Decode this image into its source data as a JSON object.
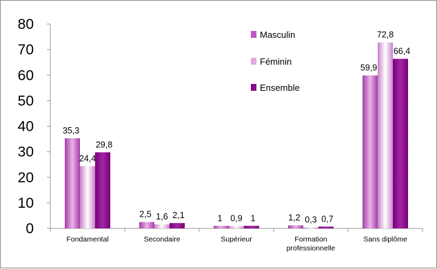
{
  "chart_data": {
    "type": "bar",
    "categories": [
      "Fondamental",
      "Secondaire",
      "Supérieur",
      [
        "Formation",
        "professionnelle"
      ],
      "Sans diplôme"
    ],
    "series": [
      {
        "name": "Masculin",
        "values": [
          35.3,
          2.5,
          1,
          1.2,
          59.9
        ],
        "labels": [
          "35,3",
          "2,5",
          "1",
          "1,2",
          "59,9"
        ],
        "color": "#c058c0"
      },
      {
        "name": "Féminin",
        "values": [
          24.4,
          1.6,
          0.9,
          0.3,
          72.8
        ],
        "labels": [
          "24,4",
          "1,6",
          "0,9",
          "0,3",
          "72,8"
        ],
        "color": "#e2a8e2"
      },
      {
        "name": "Ensemble",
        "values": [
          29.8,
          2.1,
          1,
          0.7,
          66.4
        ],
        "labels": [
          "29,8",
          "2,1",
          "1",
          "0,7",
          "66,4"
        ],
        "color": "#8c0a8c"
      }
    ],
    "yticks": [
      "0",
      "10",
      "20",
      "30",
      "40",
      "50",
      "60",
      "70",
      "80"
    ],
    "ylim": [
      0,
      80
    ],
    "grid": false,
    "legend": "top-center"
  }
}
